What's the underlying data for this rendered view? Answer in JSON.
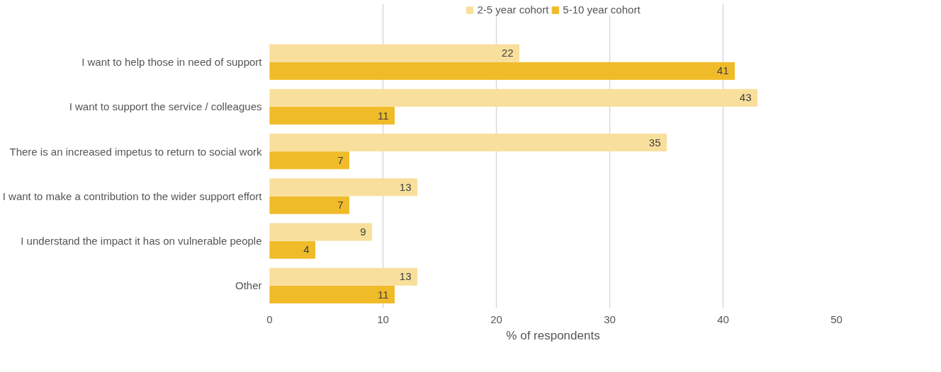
{
  "chart_data": {
    "type": "bar",
    "orientation": "horizontal",
    "xlabel": "% of respondents",
    "categories": [
      "I want to help those in need of support",
      "I want to support the service / colleagues",
      "There is an increased impetus to return to social work",
      "I want to make a contribution to the wider support effort",
      "I understand the impact it has on vulnerable people",
      "Other"
    ],
    "series": [
      {
        "name": "2-5 year cohort",
        "color": "#f8df9c",
        "values": [
          22,
          43,
          35,
          13,
          9,
          13
        ]
      },
      {
        "name": "5-10 year cohort",
        "color": "#f0bb28",
        "values": [
          41,
          11,
          7,
          7,
          4,
          11
        ]
      }
    ],
    "xlim": [
      0,
      50
    ],
    "xticks": [
      0,
      10,
      20,
      30,
      40,
      50
    ],
    "grid": "x",
    "legend": "top",
    "data_labels": true
  }
}
